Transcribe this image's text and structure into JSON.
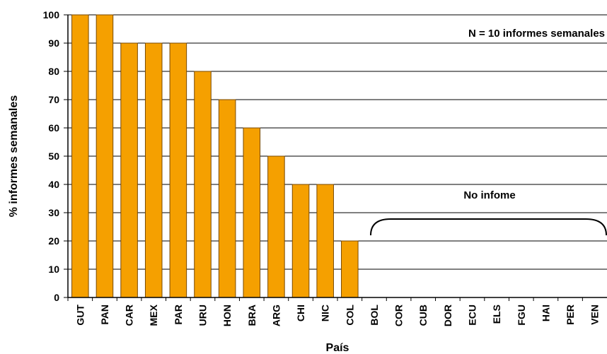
{
  "chart_data": {
    "type": "bar",
    "categories": [
      "GUT",
      "PAN",
      "CAR",
      "MEX",
      "PAR",
      "URU",
      "HON",
      "BRA",
      "ARG",
      "CHI",
      "NIC",
      "COL",
      "BOL",
      "COR",
      "CUB",
      "DOR",
      "ECU",
      "ELS",
      "FGU",
      "HAI",
      "PER",
      "VEN"
    ],
    "values": [
      100,
      100,
      90,
      90,
      90,
      80,
      70,
      60,
      50,
      40,
      40,
      20,
      0,
      0,
      0,
      0,
      0,
      0,
      0,
      0,
      0,
      0
    ],
    "xlabel": "País",
    "ylabel": "% informes semanales",
    "ylim": [
      0,
      100
    ],
    "yticks": [
      0,
      10,
      20,
      30,
      40,
      50,
      60,
      70,
      80,
      90,
      100
    ],
    "grid": true,
    "bar_color": "#F5A000",
    "bar_edge_color": "#7A4A00",
    "annotations": {
      "n_label": "N = 10 informes semanales",
      "no_report_label": "No infome"
    }
  }
}
